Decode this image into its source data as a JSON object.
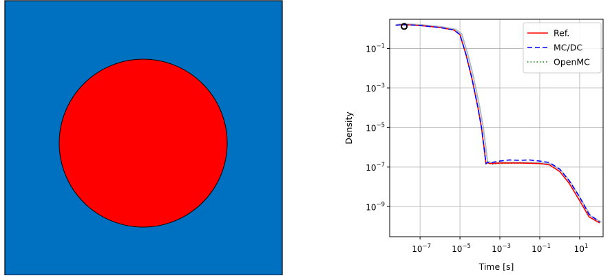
{
  "geometry": {
    "background_color": "#0070c0",
    "circle_color": "#ff0000"
  },
  "chart_data": {
    "type": "line",
    "title": "",
    "xlabel": "Time [s]",
    "ylabel": "Density",
    "xscale": "log",
    "yscale": "log",
    "xlim": [
      3e-09,
      150
    ],
    "ylim": [
      3e-11,
      3
    ],
    "x_ticks": [
      {
        "value": 1e-07,
        "base": "10",
        "exp": "−7"
      },
      {
        "value": 1e-05,
        "base": "10",
        "exp": "−5"
      },
      {
        "value": 0.001,
        "base": "10",
        "exp": "−3"
      },
      {
        "value": 0.1,
        "base": "10",
        "exp": "−1"
      },
      {
        "value": 10,
        "base": "10",
        "exp": "1"
      }
    ],
    "y_ticks": [
      {
        "value": 0.1,
        "base": "10",
        "exp": "−1"
      },
      {
        "value": 0.001,
        "base": "10",
        "exp": "−3"
      },
      {
        "value": 1e-05,
        "base": "10",
        "exp": "−5"
      },
      {
        "value": 1e-07,
        "base": "10",
        "exp": "−7"
      },
      {
        "value": 1e-09,
        "base": "10",
        "exp": "−9"
      }
    ],
    "grid": true,
    "legend_position": "upper right",
    "series": [
      {
        "name": "Ref.",
        "color": "#ff0000",
        "style": "solid",
        "x": [
          6e-09,
          1e-08,
          3e-08,
          1e-07,
          1e-06,
          5e-06,
          1e-05,
          2e-05,
          4e-05,
          8e-05,
          0.00012,
          0.00016,
          0.0002,
          0.00025,
          0.0003,
          0.00035,
          0.0004,
          0.001,
          0.01,
          0.1,
          0.3,
          1,
          3,
          10,
          30,
          100
        ],
        "y": [
          1.5,
          1.55,
          1.55,
          1.45,
          1.15,
          0.85,
          0.5,
          0.05,
          0.003,
          0.0001,
          1e-05,
          1e-06,
          1.5e-07,
          1.7e-07,
          1.5e-07,
          1.5e-07,
          1.5e-07,
          1.6e-07,
          1.6e-07,
          1.5e-07,
          1.3e-07,
          6e-08,
          1.5e-08,
          2e-09,
          3e-10,
          1.5e-10
        ]
      },
      {
        "name": "MC/DC",
        "color": "#0000ff",
        "style": "dashed",
        "x": [
          6e-09,
          1e-08,
          3e-08,
          1e-07,
          1e-06,
          5e-06,
          1e-05,
          2e-05,
          4e-05,
          8e-05,
          0.00012,
          0.00016,
          0.0002,
          0.00025,
          0.0003,
          0.0005,
          0.001,
          0.003,
          0.01,
          0.03,
          0.1,
          0.3,
          1,
          3,
          10,
          30,
          100
        ],
        "y": [
          1.5,
          1.55,
          1.55,
          1.45,
          1.15,
          0.85,
          0.5,
          0.05,
          0.003,
          0.0001,
          1e-05,
          1e-06,
          1.5e-07,
          1.8e-07,
          1.6e-07,
          1.8e-07,
          2e-07,
          2.3e-07,
          2.2e-07,
          2.3e-07,
          2e-07,
          1.7e-07,
          8e-08,
          2e-08,
          3e-09,
          4e-10,
          1.7e-10
        ]
      },
      {
        "name": "OpenMC",
        "color": "#008000",
        "style": "dotted",
        "x": [
          6e-09,
          1e-08,
          3e-08,
          1e-07,
          1e-06,
          5e-06,
          1e-05,
          2e-05,
          4e-05,
          8e-05,
          0.00012,
          0.00016,
          0.0002,
          0.00025,
          0.0003,
          0.0004,
          0.001,
          0.01,
          0.1,
          0.3,
          1,
          3,
          10,
          30,
          100
        ],
        "y": [
          1.5,
          1.55,
          1.55,
          1.45,
          1.15,
          0.85,
          0.5,
          0.05,
          0.003,
          0.0001,
          1e-05,
          1e-06,
          1.5e-07,
          1.6e-07,
          1.5e-07,
          1.4e-07,
          1.5e-07,
          1.6e-07,
          1.5e-07,
          1.3e-07,
          6e-08,
          1.5e-08,
          2e-09,
          3e-10,
          1.5e-10
        ]
      }
    ],
    "marker": {
      "x": 1.6e-08,
      "y": 1.3,
      "shape": "circle-open",
      "color": "#000000"
    }
  }
}
